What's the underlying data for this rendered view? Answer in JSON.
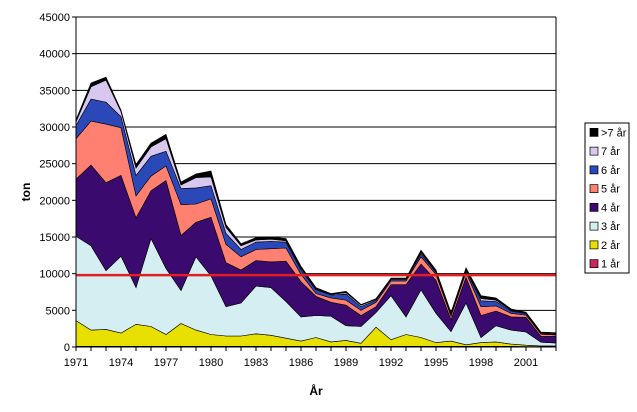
{
  "chart_data": {
    "type": "area",
    "stacked": true,
    "xlabel": "År",
    "ylabel": "ton",
    "ylim": [
      0,
      45000
    ],
    "yticks": [
      0,
      5000,
      10000,
      15000,
      20000,
      25000,
      30000,
      35000,
      40000,
      45000
    ],
    "xlim": [
      1971,
      2003
    ],
    "xticks": [
      1971,
      1974,
      1977,
      1980,
      1983,
      1986,
      1989,
      1992,
      1995,
      1998,
      2001
    ],
    "grid": "horizontal",
    "legend_position": "right",
    "x": [
      1971,
      1972,
      1973,
      1974,
      1975,
      1976,
      1977,
      1978,
      1979,
      1980,
      1981,
      1982,
      1983,
      1984,
      1985,
      1986,
      1987,
      1988,
      1989,
      1990,
      1991,
      1992,
      1993,
      1994,
      1995,
      1996,
      1997,
      1998,
      1999,
      2000,
      2001,
      2002,
      2003
    ],
    "series": [
      {
        "name": "1 år",
        "color": "#c8285a",
        "values": [
          100,
          100,
          100,
          100,
          100,
          100,
          100,
          100,
          100,
          100,
          100,
          100,
          100,
          100,
          100,
          100,
          100,
          100,
          100,
          100,
          100,
          100,
          100,
          100,
          100,
          100,
          100,
          100,
          100,
          100,
          50,
          50,
          50
        ]
      },
      {
        "name": "2 år",
        "color": "#e8e000",
        "values": [
          3500,
          2200,
          2300,
          1800,
          3000,
          2700,
          1600,
          3100,
          2200,
          1600,
          1400,
          1400,
          1700,
          1500,
          1100,
          700,
          1200,
          600,
          800,
          400,
          2600,
          900,
          1600,
          1200,
          500,
          700,
          200,
          500,
          600,
          300,
          200,
          100,
          100
        ]
      },
      {
        "name": "3 år",
        "color": "#d4eef2",
        "values": [
          11500,
          11500,
          8000,
          10500,
          5000,
          12000,
          9000,
          4500,
          10000,
          8000,
          4000,
          4500,
          6500,
          6500,
          5000,
          3300,
          3000,
          3500,
          2000,
          2300,
          2000,
          6000,
          2400,
          6500,
          4000,
          1300,
          5700,
          700,
          2200,
          1900,
          1800,
          500,
          400
        ]
      },
      {
        "name": "4 år",
        "color": "#3a0a6e",
        "values": [
          7800,
          11000,
          12000,
          11000,
          9500,
          6500,
          12000,
          7500,
          4700,
          8000,
          6000,
          4500,
          3500,
          3500,
          5500,
          4800,
          2600,
          1900,
          2800,
          1500,
          800,
          1500,
          4400,
          3500,
          4500,
          1600,
          3500,
          3000,
          2000,
          1800,
          2000,
          800,
          900
        ]
      },
      {
        "name": "5 år",
        "color": "#ff8070",
        "values": [
          5500,
          6000,
          8000,
          6500,
          3000,
          2000,
          2000,
          4200,
          2500,
          2500,
          2500,
          1800,
          1500,
          1800,
          1800,
          1000,
          400,
          600,
          700,
          700,
          600,
          500,
          500,
          1000,
          800,
          500,
          700,
          1200,
          700,
          500,
          300,
          300,
          200
        ]
      },
      {
        "name": "6 år",
        "color": "#2a48b8",
        "values": [
          1800,
          3000,
          3000,
          1500,
          2800,
          2700,
          2000,
          2200,
          2200,
          1800,
          1500,
          1000,
          1000,
          1000,
          800,
          600,
          500,
          400,
          800,
          500,
          300,
          200,
          200,
          400,
          300,
          300,
          300,
          800,
          600,
          300,
          200,
          100,
          100
        ]
      },
      {
        "name": "7 år",
        "color": "#d8c8f0",
        "values": [
          500,
          1700,
          3000,
          700,
          1000,
          1300,
          1700,
          500,
          1400,
          1200,
          800,
          500,
          300,
          300,
          200,
          200,
          100,
          100,
          200,
          200,
          100,
          100,
          100,
          200,
          100,
          100,
          100,
          300,
          200,
          100,
          100,
          100,
          100
        ]
      },
      {
        "name": ">7 år",
        "color": "#000000",
        "values": [
          300,
          500,
          400,
          200,
          500,
          500,
          600,
          400,
          500,
          800,
          400,
          300,
          300,
          300,
          300,
          300,
          200,
          100,
          200,
          100,
          100,
          100,
          100,
          300,
          200,
          100,
          200,
          400,
          300,
          200,
          100,
          100,
          100
        ]
      }
    ],
    "reference_line": {
      "value": 9800,
      "color": "#e02020"
    }
  }
}
